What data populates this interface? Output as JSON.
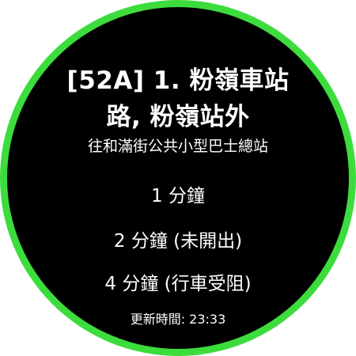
{
  "colors": {
    "ring": "#3ddc3d",
    "background": "#000000",
    "text": "#ffffff"
  },
  "stop": {
    "title_line1": "[52A] 1. 粉嶺車站",
    "title_line2": "路, 粉嶺站外",
    "destination": "往和滿街公共小型巴士總站"
  },
  "etas": [
    "1 分鐘",
    "2 分鐘 (未開出)",
    "4 分鐘 (行車受阻)"
  ],
  "updated": "更新時間: 23:33"
}
